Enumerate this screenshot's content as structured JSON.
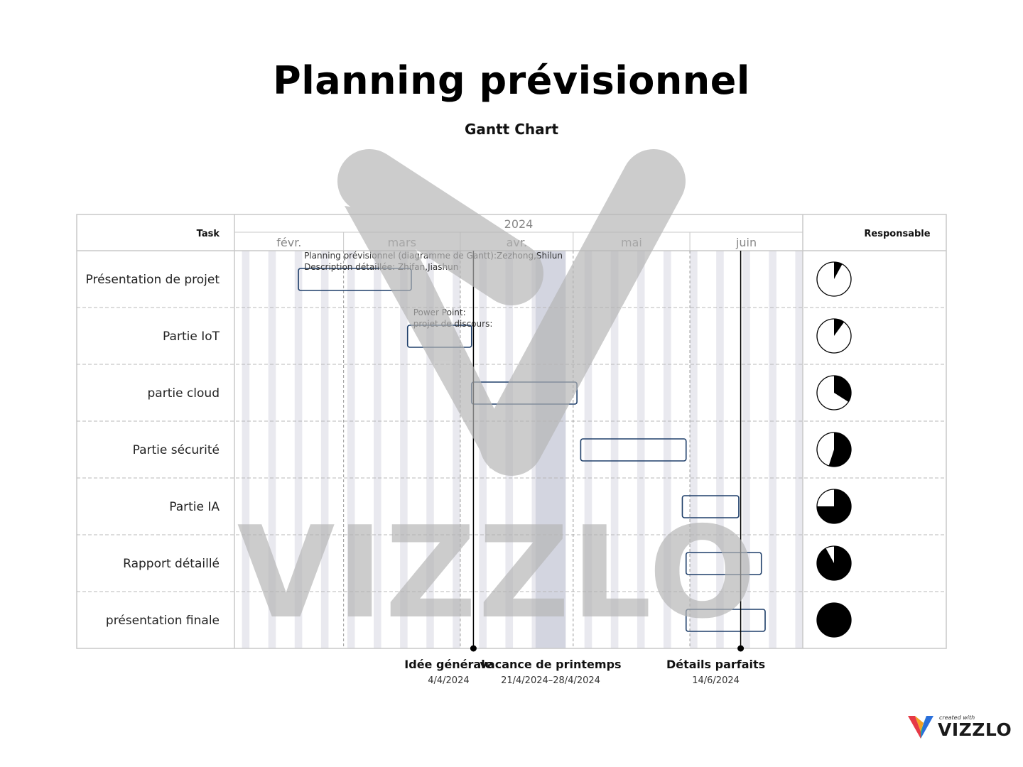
{
  "title": "Planning prévisionnel",
  "subtitle": "Gantt Chart",
  "colors": {
    "bar_border": "#1f3f6a",
    "stripe": "#e9e9ef",
    "vacation_band": "#d3d5e0",
    "grid": "#c8c8c8",
    "pie_fill": "#000000",
    "watermark": "#b5b5b5"
  },
  "watermark_text": "VIZZLO",
  "brand": {
    "created": "created with",
    "name": "VIZZLO"
  },
  "chart_data": {
    "type": "gantt",
    "columns": {
      "task": "Task",
      "responsible": "Responsable"
    },
    "year": "2024",
    "months": [
      {
        "label": "févr.",
        "start": "2024-02-01",
        "end": "2024-02-29"
      },
      {
        "label": "mars",
        "start": "2024-03-01",
        "end": "2024-03-31"
      },
      {
        "label": "avr.",
        "start": "2024-04-01",
        "end": "2024-04-30"
      },
      {
        "label": "mai",
        "start": "2024-05-01",
        "end": "2024-05-31"
      },
      {
        "label": "juin",
        "start": "2024-06-01",
        "end": "2024-06-30"
      }
    ],
    "tasks": [
      {
        "name": "Présentation de projet",
        "start": "2024-02-18",
        "end": "2024-03-18",
        "annotations": [
          "Planning prévisionnel (diagramme de Gantt):Zezhong,Shilun",
          "Description détaillée: Zhifan,Jiashun"
        ],
        "progress": 0.08
      },
      {
        "name": "Partie IoT",
        "start": "2024-03-18",
        "end": "2024-04-03",
        "annotations": [
          "Power Point:",
          "projet de discours:"
        ],
        "progress": 0.1
      },
      {
        "name": "partie cloud",
        "start": "2024-04-04",
        "end": "2024-05-01",
        "annotations": [],
        "progress": 0.34
      },
      {
        "name": "Partie sécurité",
        "start": "2024-05-03",
        "end": "2024-05-30",
        "annotations": [],
        "progress": 0.55
      },
      {
        "name": "Partie IA",
        "start": "2024-05-30",
        "end": "2024-06-13",
        "annotations": [],
        "progress": 0.75
      },
      {
        "name": "Rapport détaillé",
        "start": "2024-05-31",
        "end": "2024-06-19",
        "annotations": [],
        "progress": 0.92
      },
      {
        "name": "présentation finale",
        "start": "2024-05-31",
        "end": "2024-06-20",
        "annotations": [],
        "progress": 1.0
      }
    ],
    "milestones": [
      {
        "label": "Idée générale",
        "date_label": "4/4/2024",
        "date": "2024-04-04"
      },
      {
        "label": "Détails parfaits",
        "date_label": "14/6/2024",
        "date": "2024-06-14"
      }
    ],
    "periods": [
      {
        "label": "vacance de printemps",
        "date_label": "21/4/2024–28/4/2024",
        "start": "2024-04-21",
        "end": "2024-04-28"
      }
    ]
  }
}
